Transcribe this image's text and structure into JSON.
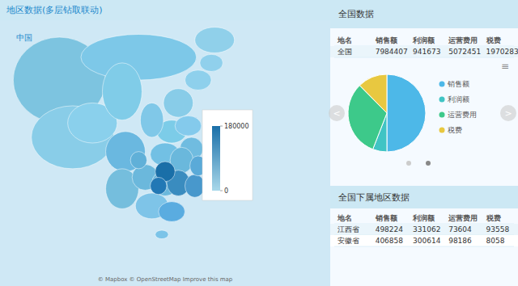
{
  "chart_data": [
    {
      "type": "map",
      "title": "地区数据(多层钻取联动)",
      "subtitle": "中国",
      "annotations": [
        "© Mapbox © OpenStreetMap  Improve this map"
      ],
      "colorbar": {
        "range": [
          0,
          180000
        ],
        "ticks": [
          0,
          180000
        ],
        "colors": [
          "#a8d8ea",
          "#1a6fa8"
        ]
      }
    },
    {
      "type": "pie",
      "categories": [
        "销售额",
        "利润额",
        "运营费用",
        "税费"
      ],
      "values": [
        7984407,
        941673,
        5072451,
        1970283
      ],
      "colors": [
        "#4db8e8",
        "#40c4c4",
        "#3dc98a",
        "#e8c840"
      ],
      "legend": "right",
      "annotations": [
        "<",
        ">",
        "≡"
      ]
    },
    {
      "type": "table",
      "title": "全国数据",
      "xlabel": "地名",
      "categories": [
        "全国"
      ],
      "series": [
        {
          "name": "销售额",
          "values": [
            7984407
          ]
        },
        {
          "name": "利润额",
          "values": [
            941673
          ]
        },
        {
          "name": "运营费用",
          "values": [
            5072451
          ]
        },
        {
          "name": "税费",
          "values": [
            1970283
          ]
        }
      ]
    },
    {
      "type": "table",
      "title": "全国下属地区数据",
      "xlabel": "地名",
      "categories": [
        "江西省",
        "安徽省"
      ],
      "series": [
        {
          "name": "销售额",
          "values": [
            498224,
            406858
          ]
        },
        {
          "name": "利润额",
          "values": [
            331062,
            300614
          ]
        },
        {
          "name": "运营费用",
          "values": [
            73604,
            98186
          ]
        },
        {
          "name": "税费",
          "values": [
            93558,
            8058
          ]
        }
      ]
    }
  ]
}
